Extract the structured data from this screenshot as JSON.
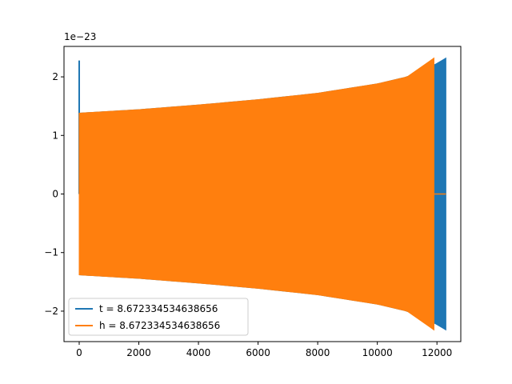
{
  "chart_data": {
    "type": "line",
    "title": "",
    "xlabel": "",
    "ylabel": "",
    "y_offset_label": "1e−23",
    "xlim": [
      -510,
      12800
    ],
    "ylim": [
      -2.52,
      2.52
    ],
    "xticks": [
      0,
      2000,
      4000,
      6000,
      8000,
      10000,
      12000
    ],
    "xtick_labels": [
      "0",
      "2000",
      "4000",
      "6000",
      "8000",
      "10000",
      "12000"
    ],
    "yticks": [
      -2,
      -1,
      0,
      1,
      2
    ],
    "ytick_labels": [
      "−2",
      "−1",
      "0",
      "1",
      "2"
    ],
    "grid": false,
    "legend_position": "lower-left",
    "series": [
      {
        "name": "t = 8.672334534638656",
        "color": "#1f77b4",
        "x_start": 0,
        "x_end": 12300,
        "envelope_x": [
          0,
          2000,
          4000,
          6000,
          8000,
          10000,
          11000,
          11900,
          12300
        ],
        "envelope_y": [
          1.38,
          1.44,
          1.52,
          1.61,
          1.72,
          1.88,
          2.0,
          2.2,
          2.32
        ],
        "initial_spike_y": 2.28
      },
      {
        "name": "h = 8.672334534638656",
        "color": "#ff7f0e",
        "x_start": 0,
        "x_end": 11900,
        "tail_end": 12300,
        "envelope_x": [
          0,
          2000,
          4000,
          6000,
          8000,
          10000,
          11000,
          11900
        ],
        "envelope_y": [
          1.38,
          1.44,
          1.52,
          1.61,
          1.72,
          1.88,
          2.0,
          2.32
        ]
      }
    ]
  }
}
